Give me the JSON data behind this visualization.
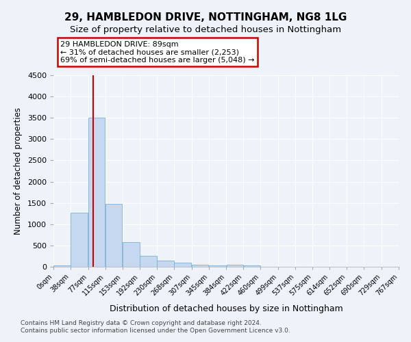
{
  "title1": "29, HAMBLEDON DRIVE, NOTTINGHAM, NG8 1LG",
  "title2": "Size of property relative to detached houses in Nottingham",
  "xlabel": "Distribution of detached houses by size in Nottingham",
  "ylabel": "Number of detached properties",
  "bin_edges": [
    0,
    38,
    77,
    115,
    153,
    192,
    230,
    268,
    307,
    345,
    384,
    422,
    460,
    499,
    537,
    575,
    614,
    652,
    690,
    729,
    767
  ],
  "bar_heights": [
    30,
    1270,
    3500,
    1480,
    580,
    250,
    140,
    90,
    50,
    30,
    50,
    30,
    0,
    0,
    0,
    0,
    0,
    0,
    0,
    0
  ],
  "bar_color": "#c5d8f0",
  "bar_edge_color": "#7ab0d8",
  "red_line_x": 89,
  "ylim": [
    0,
    4500
  ],
  "yticks": [
    0,
    500,
    1000,
    1500,
    2000,
    2500,
    3000,
    3500,
    4000,
    4500
  ],
  "annotation_title": "29 HAMBLEDON DRIVE: 89sqm",
  "annotation_line1": "← 31% of detached houses are smaller (2,253)",
  "annotation_line2": "69% of semi-detached houses are larger (5,048) →",
  "annotation_box_color": "#ffffff",
  "annotation_border_color": "#cc0000",
  "footer_line1": "Contains HM Land Registry data © Crown copyright and database right 2024.",
  "footer_line2": "Contains public sector information licensed under the Open Government Licence v3.0.",
  "background_color": "#eef2f9",
  "grid_color": "#ffffff",
  "title1_fontsize": 11,
  "title2_fontsize": 9.5
}
